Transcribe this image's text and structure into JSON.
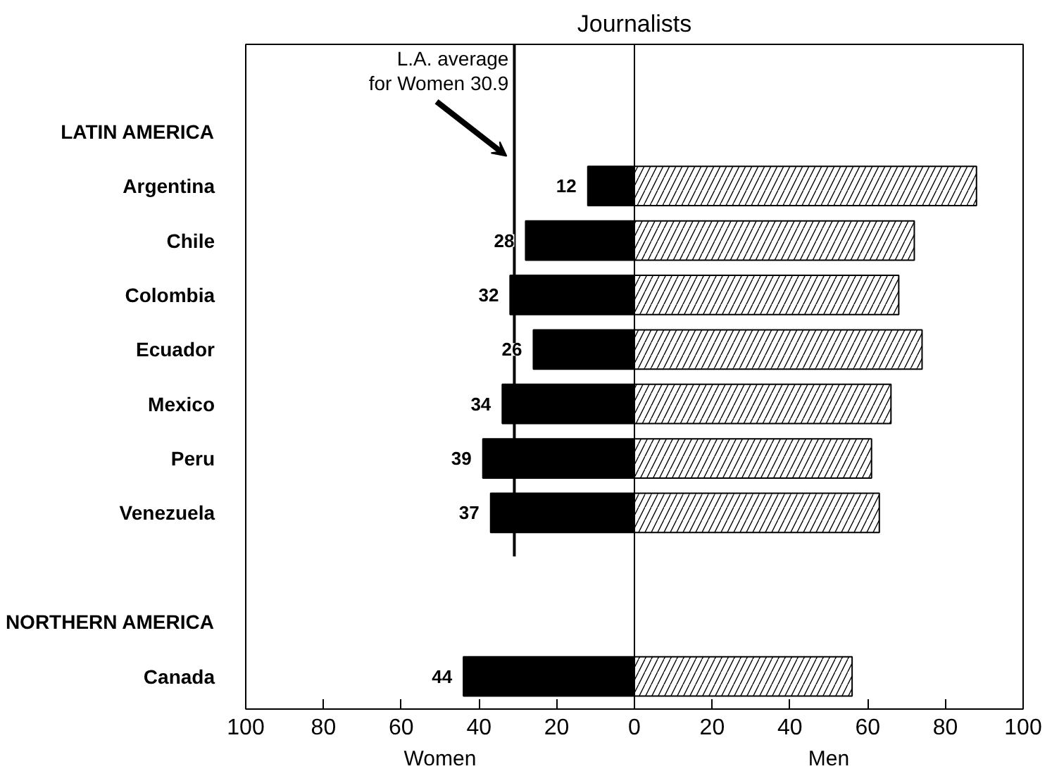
{
  "chart_data": {
    "type": "bar",
    "orientation": "horizontal",
    "title": "Journalists",
    "categories": [
      null,
      "LATIN AMERICA",
      "Argentina",
      "Chile",
      "Colombia",
      "Ecuador",
      "Mexico",
      "Peru",
      "Venezuela",
      null,
      "NORTHERN AMERICA",
      "Canada"
    ],
    "series": [
      {
        "name": "Women",
        "color": "#000000",
        "values": [
          null,
          null,
          12,
          28,
          32,
          26,
          34,
          39,
          37,
          null,
          null,
          44
        ],
        "base": [
          null,
          null,
          -12,
          -28,
          -32,
          -26,
          -34,
          -39,
          -37,
          null,
          null,
          -44
        ],
        "value_labels": [
          null,
          null,
          "12",
          "28",
          "32",
          "26",
          "34",
          "39",
          "37",
          null,
          null,
          "44"
        ]
      },
      {
        "name": "Men",
        "color": "#ffffff",
        "values": [
          null,
          null,
          88,
          72,
          68,
          74,
          66,
          61,
          63,
          null,
          null,
          56
        ]
      }
    ],
    "xlim": [
      -100,
      100
    ],
    "xticks": [
      {
        "value": -100,
        "label": "100"
      },
      {
        "value": -80,
        "label": "80"
      },
      {
        "value": -60,
        "label": "60"
      },
      {
        "value": -40,
        "label": "40"
      },
      {
        "value": -20,
        "label": "20"
      },
      0,
      20,
      40,
      60,
      80,
      100
    ],
    "ref_lines": [
      {
        "axis": "x",
        "value": 0,
        "color": "#000000",
        "line_style": "solid"
      },
      {
        "axis": "x",
        "value": -30.9,
        "label": "L.A. average\nfor Women 30.9",
        "color": "#000000",
        "line_style": "solid"
      }
    ],
    "grid": false
  }
}
